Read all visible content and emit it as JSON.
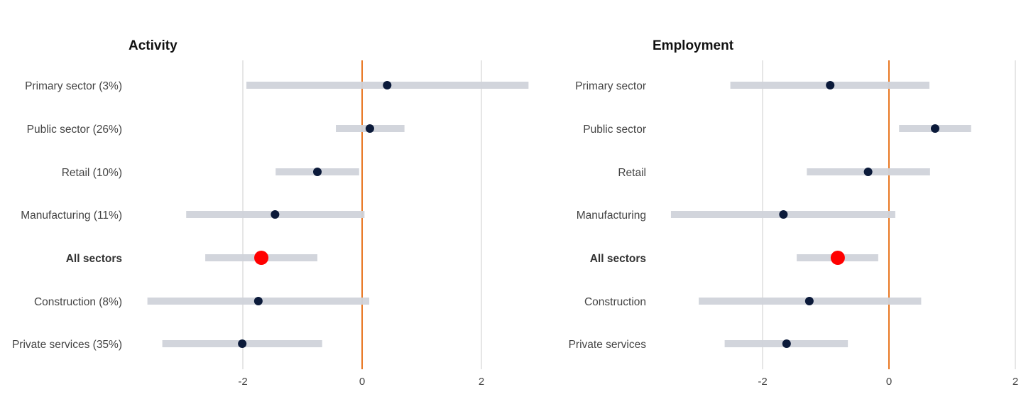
{
  "chart_data": [
    {
      "type": "dot-range",
      "title": "Activity",
      "xlim": [
        -4.0,
        3.0
      ],
      "xticks": [
        -2,
        0,
        2
      ],
      "xtick_labels": [
        "-2",
        "0",
        "2"
      ],
      "reference_line": 0,
      "grid": true,
      "categories": [
        "Primary sector (3%)",
        "Public sector (26%)",
        "Retail (10%)",
        "Manufacturing (11%)",
        "All sectors",
        "Construction (8%)",
        "Private services (35%)"
      ],
      "highlight": "All sectors",
      "values": [
        0.42,
        0.13,
        -0.75,
        -1.46,
        -1.69,
        -1.74,
        -2.01
      ],
      "low": [
        -1.94,
        -0.44,
        -1.45,
        -2.95,
        -2.63,
        -3.6,
        -3.35
      ],
      "high": [
        2.79,
        0.71,
        -0.05,
        0.04,
        -0.75,
        0.12,
        -0.67
      ]
    },
    {
      "type": "dot-range",
      "title": "Employment",
      "xlim": [
        -3.9,
        2.0
      ],
      "xticks": [
        -2,
        0,
        2
      ],
      "xtick_labels": [
        "-2",
        "0",
        "2"
      ],
      "reference_line": 0,
      "grid": true,
      "categories": [
        "Primary sector",
        "Public sector",
        "Retail",
        "Manufacturing",
        "All sectors",
        "Construction",
        "Private services"
      ],
      "highlight": "All sectors",
      "values": [
        -0.93,
        0.73,
        -0.33,
        -1.67,
        -0.81,
        -1.26,
        -1.62
      ],
      "low": [
        -2.51,
        0.16,
        -1.3,
        -3.45,
        -1.46,
        -3.01,
        -2.6
      ],
      "high": [
        0.64,
        1.3,
        0.65,
        0.1,
        -0.17,
        0.51,
        -0.65
      ]
    }
  ],
  "colors": {
    "range": "#d0d3da",
    "dot": "#0b1a3a",
    "highlight": "#ff0000",
    "reference": "#e87722",
    "grid": "#e6e6e6",
    "label": "#444444"
  }
}
